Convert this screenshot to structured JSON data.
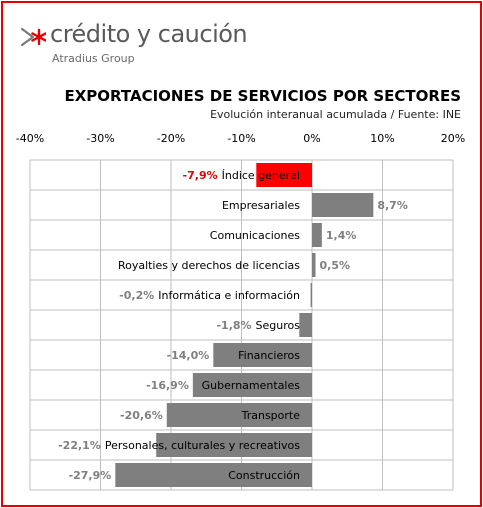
{
  "brand": {
    "name": "crédito y caución",
    "group": "Atradius Group",
    "accent_color": "#e60000",
    "text_color": "#5a5a5a"
  },
  "chart_data": {
    "type": "bar",
    "orientation": "horizontal",
    "title": "EXPORTACIONES DE SERVICIOS POR SECTORES",
    "subtitle": "Evolución interanual acumulada  / Fuente: INE",
    "xlim": [
      -40,
      20
    ],
    "x_ticks": [
      -40,
      -30,
      -20,
      -10,
      0,
      10,
      20
    ],
    "x_tick_labels": [
      "-40%",
      "-30%",
      "-20%",
      "-10%",
      "0%",
      "10%",
      "20%"
    ],
    "grid": true,
    "categories": [
      "Índice general",
      "Empresariales",
      "Comunicaciones",
      "Royalties y derechos de licencias",
      "Informática e información",
      "Seguros",
      "Financieros",
      "Gubernamentales",
      "Transporte",
      "Personales, culturales y recreativos",
      "Construcción"
    ],
    "values": [
      -7.9,
      8.7,
      1.4,
      0.5,
      -0.2,
      -1.8,
      -14.0,
      -16.9,
      -20.6,
      -22.1,
      -27.9
    ],
    "value_labels": [
      "-7,9%",
      "8,7%",
      "1,4%",
      "0,5%",
      "-0,2%",
      "-1,8%",
      "-14,0%",
      "-16,9%",
      "-20,6%",
      "-22,1%",
      "-27,9%"
    ],
    "highlight_index": 0,
    "bar_color": "#7f7f7f",
    "highlight_color": "#ff0000"
  }
}
